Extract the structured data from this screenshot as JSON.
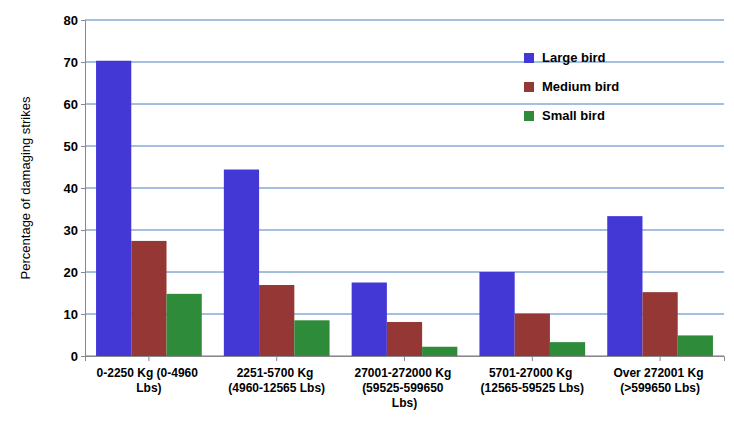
{
  "chart_data": {
    "type": "bar",
    "categories": [
      "0-2250 Kg (0-4960 Lbs)",
      "2251-5700 Kg (4960-12565 Lbs)",
      "27001-272000 Kg (59525-599650 Lbs)",
      "5701-27000 Kg (12565-59525 Lbs)",
      "Over 272001 Kg (>599650 Lbs)"
    ],
    "series": [
      {
        "name": "Large bird",
        "color": "#4338d6",
        "values": [
          70.3,
          44.4,
          17.5,
          20.0,
          33.3
        ]
      },
      {
        "name": "Medium bird",
        "color": "#953735",
        "values": [
          27.4,
          16.9,
          8.1,
          10.1,
          15.2
        ]
      },
      {
        "name": "Small bird",
        "color": "#2e8b3a",
        "values": [
          14.8,
          8.5,
          2.2,
          3.3,
          4.9
        ]
      }
    ],
    "y_label": "Percentage of damaging strikes",
    "ylim": [
      0,
      80
    ],
    "yticks": [
      0,
      10,
      20,
      30,
      40,
      50,
      60,
      70,
      80
    ],
    "grid": true,
    "legend": "upper right"
  }
}
